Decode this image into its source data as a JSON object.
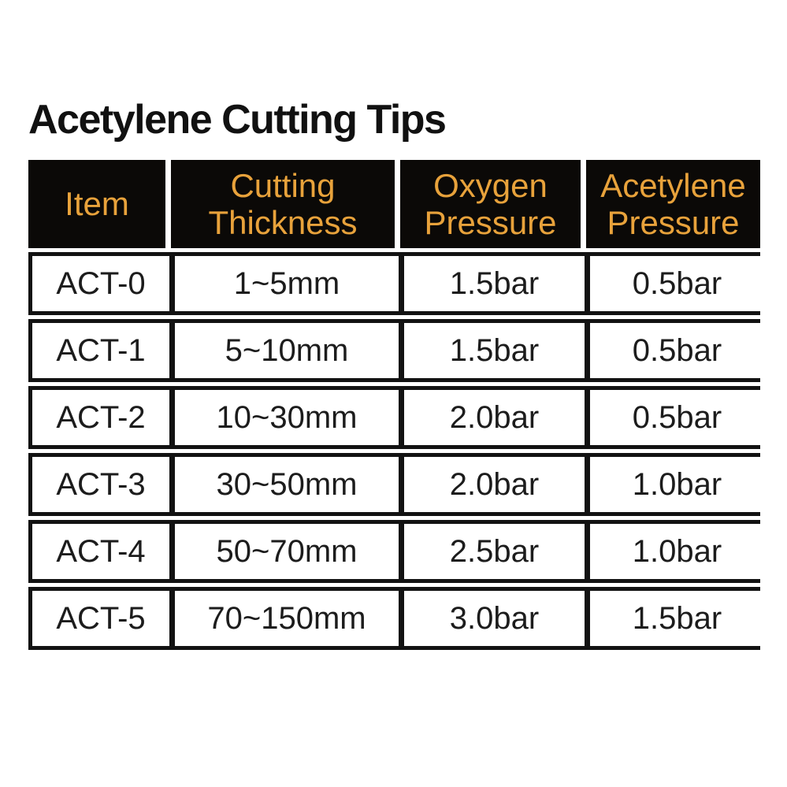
{
  "page": {
    "title": "Acetylene Cutting Tips"
  },
  "colors": {
    "page_bg": "#ffffff",
    "header_bg": "#0b0907",
    "header_text": "#e8a23b",
    "border": "#121212",
    "cell_text": "#1c1c1c",
    "cell_bg": "#ffffff"
  },
  "table": {
    "columns": [
      {
        "key": "item",
        "label": "Item"
      },
      {
        "key": "thickness",
        "label": "Cutting Thickness"
      },
      {
        "key": "oxygen",
        "label": "Oxygen Pressure"
      },
      {
        "key": "acetylene",
        "label": "Acetylene Pressure"
      }
    ],
    "rows": [
      {
        "item": "ACT-0",
        "thickness": "1~5mm",
        "oxygen": "1.5bar",
        "acetylene": "0.5bar"
      },
      {
        "item": "ACT-1",
        "thickness": "5~10mm",
        "oxygen": "1.5bar",
        "acetylene": "0.5bar"
      },
      {
        "item": "ACT-2",
        "thickness": "10~30mm",
        "oxygen": "2.0bar",
        "acetylene": "0.5bar"
      },
      {
        "item": "ACT-3",
        "thickness": "30~50mm",
        "oxygen": "2.0bar",
        "acetylene": "1.0bar"
      },
      {
        "item": "ACT-4",
        "thickness": "50~70mm",
        "oxygen": "2.5bar",
        "acetylene": "1.0bar"
      },
      {
        "item": "ACT-5",
        "thickness": "70~150mm",
        "oxygen": "3.0bar",
        "acetylene": "1.5bar"
      }
    ]
  }
}
